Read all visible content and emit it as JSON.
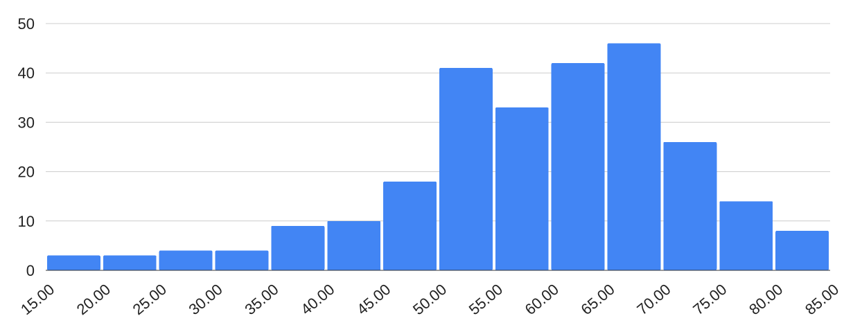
{
  "chart_data": {
    "type": "bar",
    "bin_edges": [
      "15.00",
      "20.00",
      "25.00",
      "30.00",
      "35.00",
      "40.00",
      "45.00",
      "50.00",
      "55.00",
      "60.00",
      "65.00",
      "70.00",
      "75.00",
      "80.00",
      "85.00"
    ],
    "values": [
      3,
      3,
      4,
      4,
      9,
      10,
      18,
      41,
      33,
      42,
      46,
      26,
      14,
      8
    ],
    "y_ticks": [
      "0",
      "10",
      "20",
      "30",
      "40",
      "50"
    ],
    "ylim": [
      0,
      50
    ],
    "grid": true,
    "bar_color": "#4285f4",
    "title": "",
    "xlabel": "",
    "ylabel": ""
  }
}
